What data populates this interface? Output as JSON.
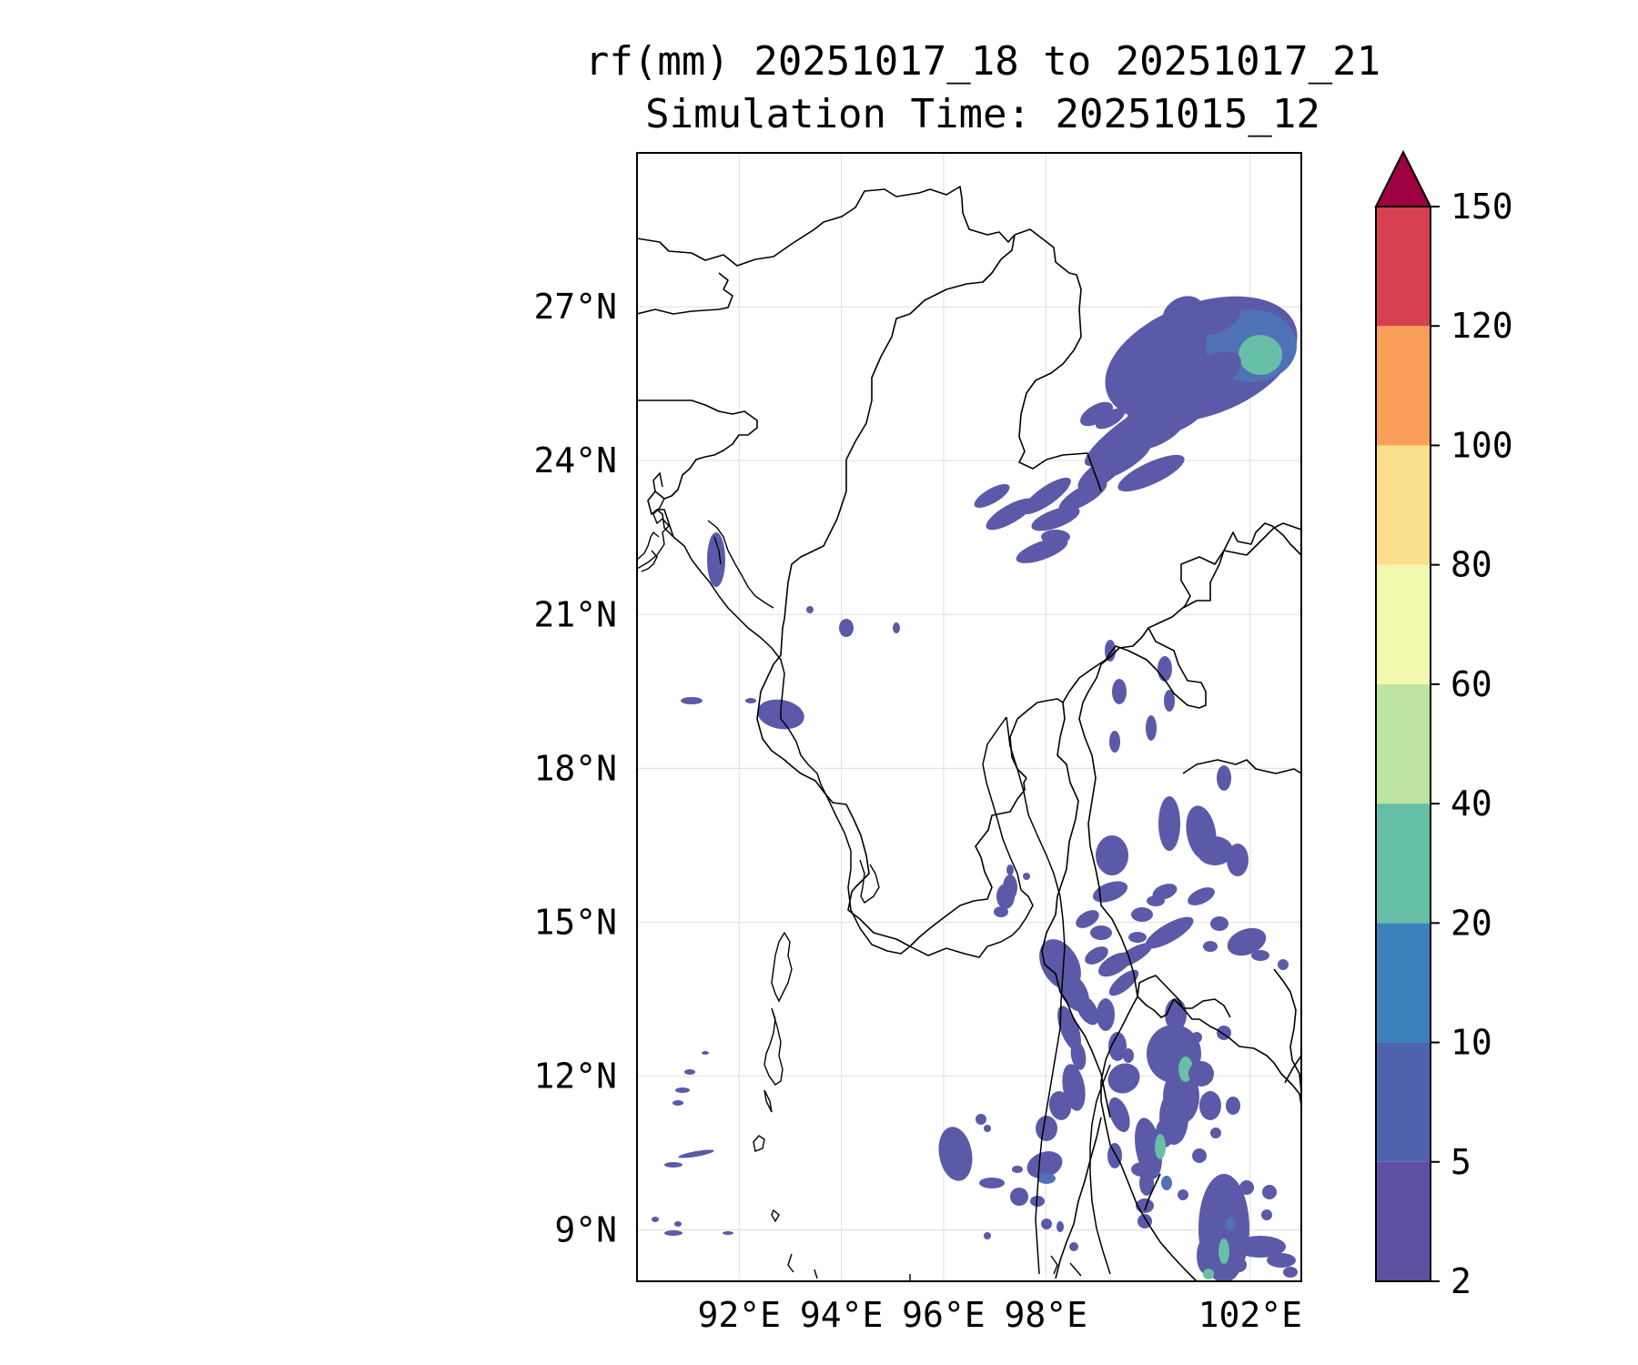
{
  "title": {
    "line1": "rf(mm) 20251017_18 to 20251017_21",
    "line2": "Simulation Time: 20251015_12"
  },
  "map": {
    "lat_labels": [
      "27°N",
      "24°N",
      "21°N",
      "18°N",
      "15°N",
      "12°N",
      "9°N"
    ],
    "lon_labels": [
      "92°E",
      "94°E",
      "96°E",
      "98°E",
      "102°E"
    ],
    "lat_values": [
      27,
      24,
      21,
      18,
      15,
      12,
      9
    ],
    "lon_values": [
      92,
      94,
      96,
      98,
      102
    ],
    "extent": {
      "lon": [
        90,
        103
      ],
      "lat": [
        8,
        30
      ]
    }
  },
  "colorbar": {
    "levels": [
      "2",
      "5",
      "10",
      "20",
      "40",
      "60",
      "80",
      "100",
      "120",
      "150"
    ],
    "colors": [
      "#5e4fa2",
      "#4f62ad",
      "#3b82bd",
      "#66bfa6",
      "#bde3a0",
      "#f2f8ae",
      "#fbdf8c",
      "#f99f5a",
      "#d63f4f",
      "#9e0142"
    ],
    "extend": "max"
  },
  "precip_colors": {
    "light": "#5b5aa8",
    "medium": "#4f72b6",
    "heavy": "#66bfa6"
  }
}
